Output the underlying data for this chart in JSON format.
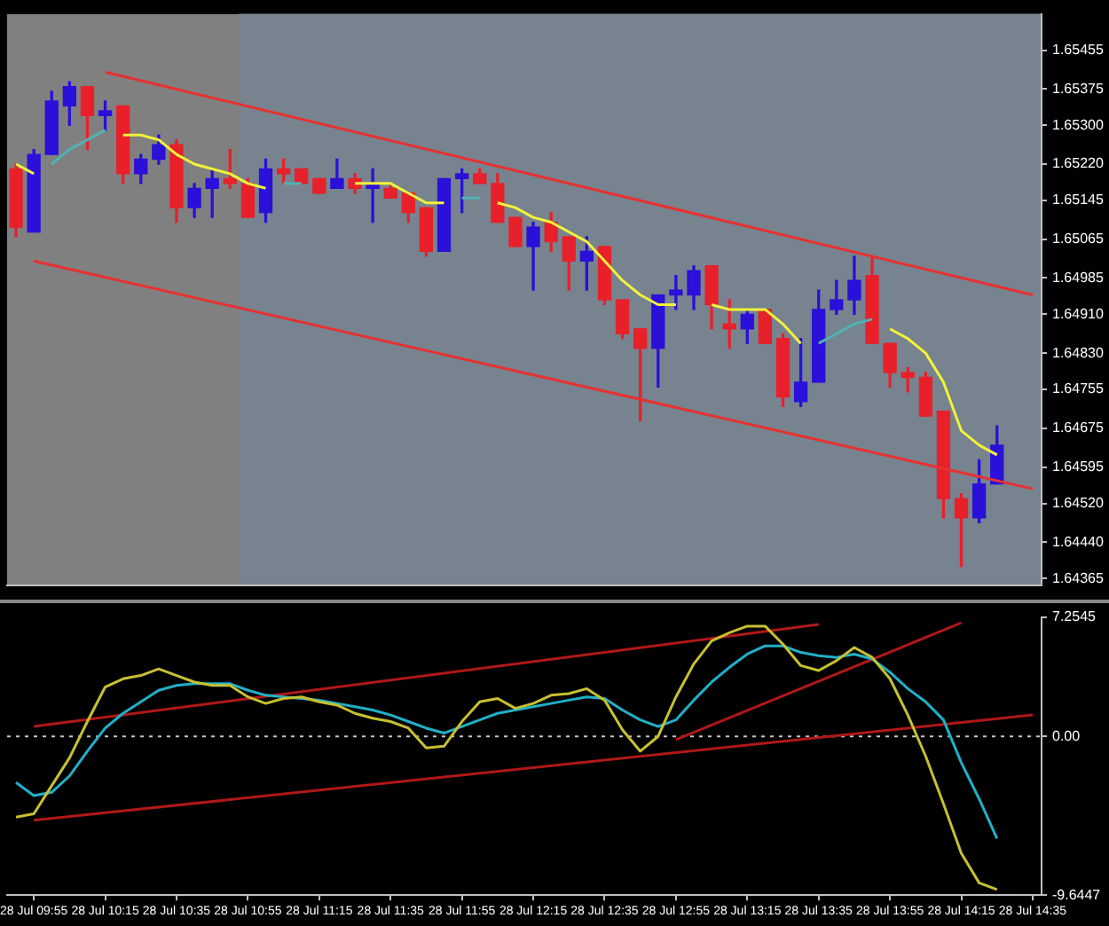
{
  "chart_data": [
    {
      "type": "candlestick",
      "tick_labels": "y",
      "legend": false,
      "marker": "none",
      "categories": [
        null,
        "28 Jul 09:55",
        null,
        null,
        null,
        "28 Jul 10:15",
        null,
        null,
        null,
        "28 Jul 10:35",
        null,
        null,
        null,
        "28 Jul 10:55",
        null,
        null,
        null,
        "28 Jul 11:15",
        null,
        null,
        null,
        "28 Jul 11:35",
        null,
        null,
        null,
        "28 Jul 11:55",
        null,
        null,
        null,
        "28 Jul 12:15",
        null,
        null,
        null,
        "28 Jul 12:35",
        null,
        null,
        null,
        "28 Jul 12:55",
        null,
        null,
        null,
        "28 Jul 13:15",
        null,
        null,
        null,
        "28 Jul 13:35",
        null,
        null,
        null,
        "28 Jul 13:55",
        null,
        null,
        null,
        "28 Jul 14:15",
        null,
        null,
        null,
        "28 Jul 14:35"
      ],
      "ohlc": [
        [
          1.6521,
          1.6522,
          1.6507,
          1.6509
        ],
        [
          1.6508,
          1.6525,
          1.6508,
          1.6524
        ],
        [
          1.6524,
          1.6537,
          1.6524,
          1.6535
        ],
        [
          1.6534,
          1.6539,
          1.653,
          1.6538
        ],
        [
          1.6538,
          1.6538,
          1.6525,
          1.6532
        ],
        [
          1.6532,
          1.6535,
          1.6529,
          1.6533
        ],
        [
          1.6534,
          1.6534,
          1.6518,
          1.652
        ],
        [
          1.652,
          1.6524,
          1.6518,
          1.6523
        ],
        [
          1.6523,
          1.6528,
          1.6522,
          1.6526
        ],
        [
          1.6526,
          1.6527,
          1.651,
          1.6513
        ],
        [
          1.6513,
          1.6518,
          1.6511,
          1.6517
        ],
        [
          1.6517,
          1.6521,
          1.6511,
          1.6519
        ],
        [
          1.6519,
          1.6525,
          1.6517,
          1.6518
        ],
        [
          1.6518,
          1.6519,
          1.6511,
          1.6511
        ],
        [
          1.6512,
          1.6523,
          1.651,
          1.6521
        ],
        [
          1.6521,
          1.6523,
          1.6518,
          1.652
        ],
        [
          1.6521,
          1.6521,
          1.6518,
          1.6518
        ],
        [
          1.6519,
          1.6519,
          1.6516,
          1.6516
        ],
        [
          1.6517,
          1.6523,
          1.6517,
          1.6519
        ],
        [
          1.6519,
          1.652,
          1.6516,
          1.6517
        ],
        [
          1.6517,
          1.6521,
          1.651,
          1.6518
        ],
        [
          1.6517,
          1.6518,
          1.6515,
          1.6515
        ],
        [
          1.6516,
          1.6516,
          1.651,
          1.6512
        ],
        [
          1.6513,
          1.6513,
          1.6503,
          1.6504
        ],
        [
          1.6504,
          1.6519,
          1.6504,
          1.6519
        ],
        [
          1.6519,
          1.6521,
          1.6512,
          1.652
        ],
        [
          1.652,
          1.6521,
          1.6518,
          1.6518
        ],
        [
          1.6518,
          1.652,
          1.651,
          1.651
        ],
        [
          1.6511,
          1.6511,
          1.6505,
          1.6505
        ],
        [
          1.6505,
          1.651,
          1.6496,
          1.6509
        ],
        [
          1.651,
          1.6512,
          1.6504,
          1.6506
        ],
        [
          1.6507,
          1.6507,
          1.6496,
          1.6502
        ],
        [
          1.6502,
          1.6507,
          1.6496,
          1.6504
        ],
        [
          1.6505,
          1.6505,
          1.6493,
          1.6494
        ],
        [
          1.6494,
          1.6494,
          1.6486,
          1.6487
        ],
        [
          1.6488,
          1.6488,
          1.6469,
          1.6484
        ],
        [
          1.6484,
          1.6495,
          1.6476,
          1.6495
        ],
        [
          1.6495,
          1.6499,
          1.6492,
          1.6496
        ],
        [
          1.6495,
          1.6501,
          1.6492,
          1.65
        ],
        [
          1.6501,
          1.6501,
          1.6488,
          1.6493
        ],
        [
          1.6489,
          1.6494,
          1.6484,
          1.6488
        ],
        [
          1.6488,
          1.6492,
          1.6485,
          1.6491
        ],
        [
          1.6492,
          1.6492,
          1.6485,
          1.6485
        ],
        [
          1.6486,
          1.6487,
          1.6472,
          1.6474
        ],
        [
          1.6473,
          1.6486,
          1.6472,
          1.6477
        ],
        [
          1.6477,
          1.6496,
          1.6477,
          1.6492
        ],
        [
          1.6492,
          1.6498,
          1.6491,
          1.6494
        ],
        [
          1.6494,
          1.6503,
          1.6491,
          1.6498
        ],
        [
          1.6499,
          1.6503,
          1.6485,
          1.6485
        ],
        [
          1.6485,
          1.6485,
          1.6476,
          1.6479
        ],
        [
          1.6479,
          1.648,
          1.6475,
          1.6478
        ],
        [
          1.6478,
          1.6479,
          1.647,
          1.647
        ],
        [
          1.6471,
          1.6471,
          1.6449,
          1.6453
        ],
        [
          1.6453,
          1.6454,
          1.6439,
          1.6449
        ],
        [
          1.6449,
          1.6461,
          1.6448,
          1.6456
        ],
        [
          1.6456,
          1.6468,
          1.6456,
          1.6464
        ],
        null,
        null
      ],
      "colors": [
        "#e8202a",
        "#2a10d8",
        "#2a10d8",
        "#2a10d8",
        "#e8202a",
        "#2a10d8",
        "#e8202a",
        "#2a10d8",
        "#2a10d8",
        "#e8202a",
        "#2a10d8",
        "#2a10d8",
        "#e8202a",
        "#e8202a",
        "#2a10d8",
        "#e8202a",
        "#e8202a",
        "#e8202a",
        "#2a10d8",
        "#e8202a",
        "#2a10d8",
        "#e8202a",
        "#e8202a",
        "#e8202a",
        "#2a10d8",
        "#2a10d8",
        "#e8202a",
        "#e8202a",
        "#e8202a",
        "#2a10d8",
        "#e8202a",
        "#e8202a",
        "#2a10d8",
        "#e8202a",
        "#e8202a",
        "#e8202a",
        "#2a10d8",
        "#2a10d8",
        "#2a10d8",
        "#e8202a",
        "#e8202a",
        "#2a10d8",
        "#e8202a",
        "#e8202a",
        "#2a10d8",
        "#2a10d8",
        "#2a10d8",
        "#2a10d8",
        "#e8202a",
        "#e8202a",
        "#e8202a",
        "#e8202a",
        "#e8202a",
        "#e8202a",
        "#2a10d8",
        "#2a10d8",
        null,
        null
      ],
      "series": [
        {
          "type": "line",
          "color": "#f2f23a",
          "values": [
            1.6522,
            1.652,
            null,
            null,
            null,
            null,
            1.6528,
            1.6528,
            1.6527,
            1.6524,
            1.6522,
            1.6521,
            1.652,
            1.6518,
            1.6517,
            null,
            null,
            null,
            null,
            1.6518,
            1.6518,
            1.6518,
            1.6516,
            1.6514,
            1.6514,
            null,
            null,
            1.6514,
            1.6513,
            1.6511,
            1.651,
            1.6508,
            1.6506,
            1.6502,
            1.6498,
            1.6495,
            1.6493,
            1.6493,
            null,
            1.6493,
            1.6492,
            1.6492,
            1.6492,
            1.6489,
            1.6485,
            null,
            null,
            null,
            null,
            1.6488,
            1.6486,
            1.6483,
            1.6477,
            1.6467,
            1.6464,
            1.6462,
            null,
            null
          ]
        },
        {
          "type": "line",
          "color": "#4fb3b3",
          "values": [
            null,
            null,
            1.6522,
            1.6525,
            1.6527,
            1.6529,
            null,
            null,
            null,
            null,
            null,
            null,
            null,
            null,
            null,
            1.6518,
            1.6518,
            null,
            null,
            null,
            null,
            null,
            null,
            null,
            null,
            1.6515,
            1.6515,
            null,
            null,
            null,
            null,
            null,
            null,
            null,
            null,
            null,
            null,
            null,
            null,
            null,
            null,
            null,
            null,
            null,
            null,
            1.6485,
            1.6487,
            1.6489,
            1.649,
            null,
            null,
            null,
            null,
            null,
            null,
            null,
            null,
            null
          ]
        },
        {
          "type": "line",
          "color": "#e83030",
          "x": [
            "28 Jul 10:15",
            "28 Jul 14:35"
          ],
          "values": [
            1.6541,
            1.6495
          ]
        },
        {
          "type": "line",
          "color": "#e83030",
          "x": [
            "28 Jul 09:55",
            "28 Jul 14:35"
          ],
          "values": [
            1.6502,
            1.6455
          ]
        }
      ],
      "ylim": [
        1.6435,
        1.6553
      ],
      "yticks": [
        1.64365,
        {
          "value": 1.6444,
          "label": "1.64440"
        },
        {
          "value": 1.6452,
          "label": "1.64520"
        },
        1.64595,
        1.64675,
        1.64755,
        {
          "value": 1.6483,
          "label": "1.64830"
        },
        {
          "value": 1.6491,
          "label": "1.64910"
        },
        1.64985,
        1.65065,
        1.65145,
        {
          "value": 1.6522,
          "label": "1.65220"
        },
        {
          "value": 1.653,
          "label": "1.65300"
        },
        1.65375,
        1.65455
      ]
    },
    {
      "type": "line",
      "legend": false,
      "marker": "none",
      "categories": [
        null,
        "28 Jul 09:55",
        null,
        null,
        null,
        "28 Jul 10:15",
        null,
        null,
        null,
        "28 Jul 10:35",
        null,
        null,
        null,
        "28 Jul 10:55",
        null,
        null,
        null,
        "28 Jul 11:15",
        null,
        null,
        null,
        "28 Jul 11:35",
        null,
        null,
        null,
        "28 Jul 11:55",
        null,
        null,
        null,
        "28 Jul 12:15",
        null,
        null,
        null,
        "28 Jul 12:35",
        null,
        null,
        null,
        "28 Jul 12:55",
        null,
        null,
        null,
        "28 Jul 13:15",
        null,
        null,
        null,
        "28 Jul 13:35",
        null,
        null,
        null,
        "28 Jul 13:55",
        null,
        null,
        null,
        "28 Jul 14:15",
        null,
        null,
        null,
        "28 Jul 14:35"
      ],
      "series": [
        {
          "color": "#c8c030",
          "values": [
            -4.9,
            -4.7,
            -3.0,
            -1.3,
            0.9,
            3.0,
            3.5,
            3.7,
            4.1,
            3.7,
            3.3,
            3.1,
            3.1,
            2.4,
            2.0,
            2.3,
            2.4,
            2.1,
            1.9,
            1.4,
            1.1,
            0.9,
            0.5,
            -0.7,
            -0.6,
            0.9,
            2.1,
            2.3,
            1.7,
            2.0,
            2.5,
            2.6,
            2.9,
            2.2,
            0.4,
            -0.9,
            0.0,
            2.4,
            4.4,
            5.8,
            6.3,
            6.7,
            6.7,
            5.6,
            4.3,
            4.0,
            4.6,
            5.4,
            4.8,
            3.5,
            1.3,
            -1.2,
            -4.1,
            -7.1,
            -8.9,
            -9.3,
            null,
            null
          ]
        },
        {
          "color": "#20b0c8",
          "values": [
            -2.8,
            -3.6,
            -3.4,
            -2.4,
            -0.9,
            0.5,
            1.4,
            2.1,
            2.8,
            3.1,
            3.2,
            3.2,
            3.2,
            2.8,
            2.5,
            2.4,
            2.3,
            2.2,
            2.0,
            1.8,
            1.6,
            1.3,
            0.9,
            0.5,
            0.2,
            0.6,
            1.0,
            1.4,
            1.6,
            1.8,
            2.0,
            2.2,
            2.4,
            2.3,
            1.6,
            1.0,
            0.6,
            1.0,
            2.2,
            3.3,
            4.2,
            5.0,
            5.5,
            5.5,
            5.1,
            4.9,
            4.8,
            5.0,
            4.7,
            3.9,
            2.9,
            2.1,
            1.0,
            -1.6,
            -3.8,
            -6.2,
            null,
            null
          ]
        },
        {
          "color": "#b01818",
          "x": [
            "28 Jul 09:55",
            "28 Jul 13:35"
          ],
          "values": [
            0.6,
            6.8
          ]
        },
        {
          "color": "#b01818",
          "x": [
            "28 Jul 09:55",
            "28 Jul 14:35"
          ],
          "values": [
            -5.1,
            1.3
          ]
        },
        {
          "color": "#b01818",
          "x": [
            "28 Jul 12:55",
            "28 Jul 14:15"
          ],
          "values": [
            -0.2,
            6.9
          ]
        }
      ],
      "ylim": [
        -9.6447,
        7.2545
      ],
      "yticks": [
        -9.6447,
        {
          "value": 0,
          "label": "0.00"
        },
        7.2545
      ],
      "ref_lines": [
        {
          "axis": "y",
          "value": 0,
          "color": "#c8c8c8",
          "line_style": "dotted"
        }
      ]
    }
  ]
}
